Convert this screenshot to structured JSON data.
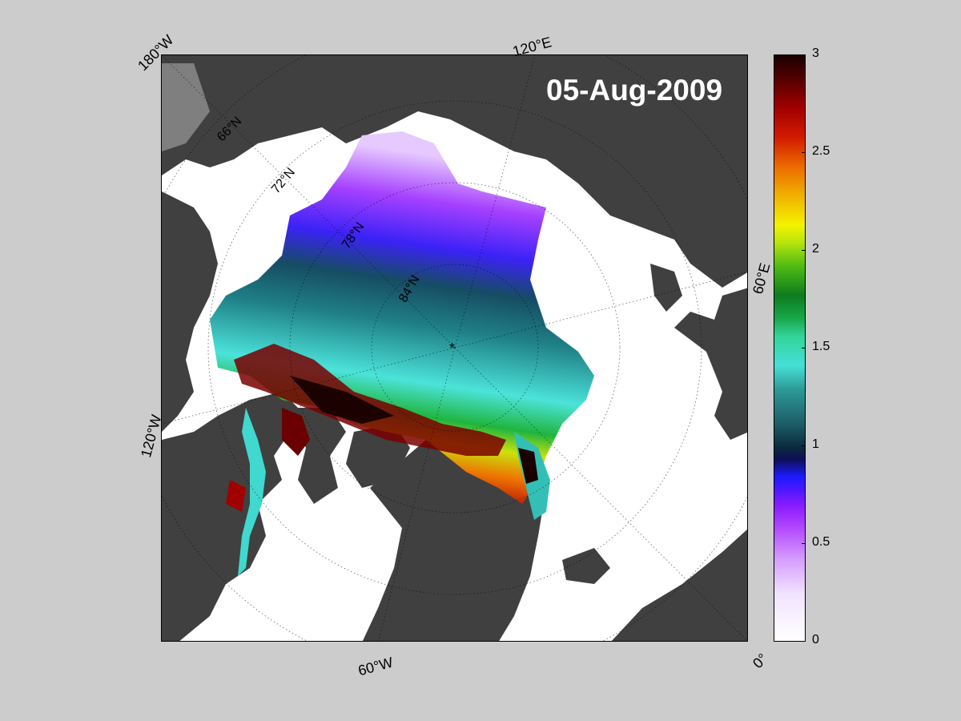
{
  "map": {
    "date": "05-Aug-2009",
    "longitude_labels": [
      "180°W",
      "120°E",
      "60°E",
      "0°",
      "60°W",
      "120°W"
    ],
    "latitude_labels": [
      "66°N",
      "72°N",
      "78°N",
      "84°N"
    ],
    "pole_marker": "*"
  },
  "colorbar": {
    "ticks": [
      "3",
      "2.5",
      "2",
      "1.5",
      "1",
      "0.5",
      "0"
    ],
    "range": [
      0,
      3
    ]
  },
  "colors": {
    "background": "#cccccc",
    "land": "#404040",
    "ocean": "#ffffff",
    "missing": "#7f7f7f"
  }
}
